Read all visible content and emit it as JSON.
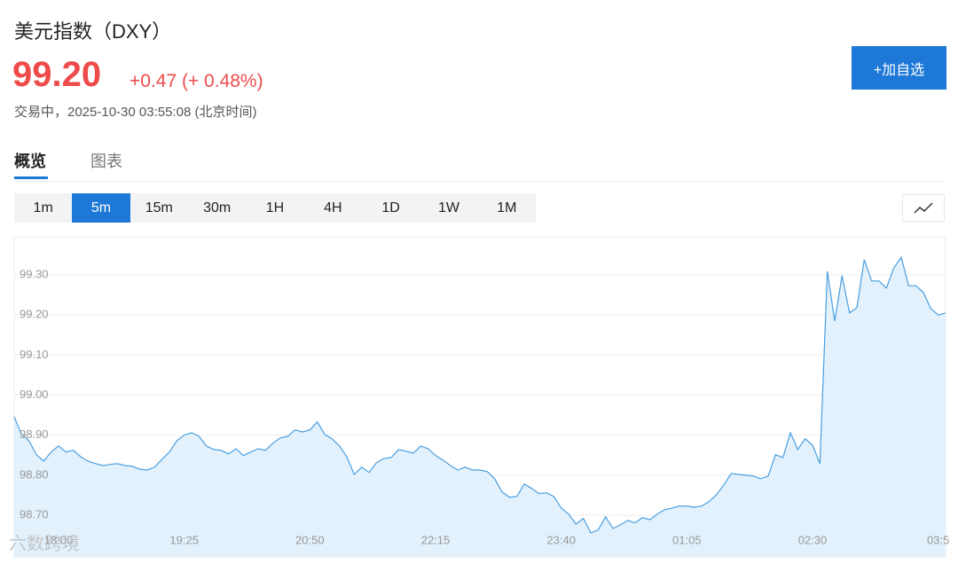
{
  "header": {
    "title": "美元指数（DXY）",
    "price": "99.20",
    "change": "+0.47 (+ 0.48%)",
    "status": "交易中，2025-10-30 03:55:08 (北京时间)",
    "watchlist_button": "+加自选"
  },
  "tabs": [
    "概览",
    "图表"
  ],
  "intervals": [
    "1m",
    "5m",
    "15m",
    "30m",
    "1H",
    "4H",
    "1D",
    "1W",
    "1M"
  ],
  "watermark": "六数跨境",
  "chart_data": {
    "type": "area",
    "color": "#4a9fe0",
    "fill_color": "#e2f1fc",
    "grid": true,
    "categories": [
      null,
      null,
      null,
      null,
      null,
      null,
      "18:00",
      null,
      null,
      null,
      null,
      null,
      null,
      null,
      null,
      null,
      null,
      null,
      null,
      null,
      null,
      null,
      null,
      "19:25",
      null,
      null,
      null,
      null,
      null,
      null,
      null,
      null,
      null,
      null,
      null,
      null,
      null,
      null,
      null,
      null,
      "20:50",
      null,
      null,
      null,
      null,
      null,
      null,
      null,
      null,
      null,
      null,
      null,
      null,
      null,
      null,
      null,
      null,
      "22:15",
      null,
      null,
      null,
      null,
      null,
      null,
      null,
      null,
      null,
      null,
      null,
      null,
      null,
      null,
      null,
      null,
      "23:40",
      null,
      null,
      null,
      null,
      null,
      null,
      null,
      null,
      null,
      null,
      null,
      null,
      null,
      null,
      null,
      null,
      "01:05",
      null,
      null,
      null,
      null,
      null,
      null,
      null,
      null,
      null,
      null,
      null,
      null,
      null,
      null,
      null,
      null,
      "02:30",
      null,
      null,
      null,
      null,
      null,
      null,
      null,
      null,
      null,
      null,
      null,
      null,
      null,
      null,
      null,
      null,
      "03:5",
      null
    ],
    "values": [
      98.946,
      98.902,
      98.886,
      98.851,
      98.835,
      98.858,
      98.873,
      98.858,
      98.862,
      98.846,
      98.835,
      98.829,
      98.824,
      98.827,
      98.829,
      98.824,
      98.822,
      98.815,
      98.813,
      98.82,
      98.84,
      98.858,
      98.886,
      98.9,
      98.906,
      98.897,
      98.873,
      98.864,
      98.862,
      98.853,
      98.866,
      98.849,
      98.858,
      98.866,
      98.862,
      98.88,
      98.893,
      98.897,
      98.913,
      98.908,
      98.913,
      98.933,
      98.902,
      98.891,
      98.873,
      98.846,
      98.802,
      98.82,
      98.807,
      98.831,
      98.842,
      98.844,
      98.864,
      98.86,
      98.855,
      98.873,
      98.866,
      98.849,
      98.838,
      98.824,
      98.813,
      98.82,
      98.813,
      98.813,
      98.809,
      98.791,
      98.758,
      98.745,
      98.747,
      98.778,
      98.767,
      98.754,
      98.756,
      98.747,
      98.718,
      98.703,
      98.678,
      98.692,
      98.656,
      98.663,
      98.696,
      98.667,
      98.676,
      98.687,
      98.681,
      98.694,
      98.689,
      98.703,
      98.714,
      98.718,
      98.723,
      98.723,
      98.72,
      98.723,
      98.734,
      98.751,
      98.776,
      98.804,
      98.802,
      98.8,
      98.798,
      98.791,
      98.798,
      98.851,
      98.844,
      98.906,
      98.864,
      98.891,
      98.875,
      98.829,
      99.309,
      99.185,
      99.298,
      99.205,
      99.218,
      99.338,
      99.285,
      99.285,
      99.267,
      99.318,
      99.344,
      99.273,
      99.273,
      99.256,
      99.216,
      99.2,
      99.205
    ],
    "ylim": [
      98.596,
      99.393
    ],
    "yticks": [
      {
        "value": 98.7,
        "label": "98.70"
      },
      {
        "value": 98.8,
        "label": "98.80"
      },
      {
        "value": 98.9,
        "label": "98.90"
      },
      {
        "value": 99.0,
        "label": "99.00"
      },
      {
        "value": 99.1,
        "label": "99.10"
      },
      {
        "value": 99.2,
        "label": "99.20"
      },
      {
        "value": 99.3,
        "label": "99.30"
      }
    ]
  }
}
